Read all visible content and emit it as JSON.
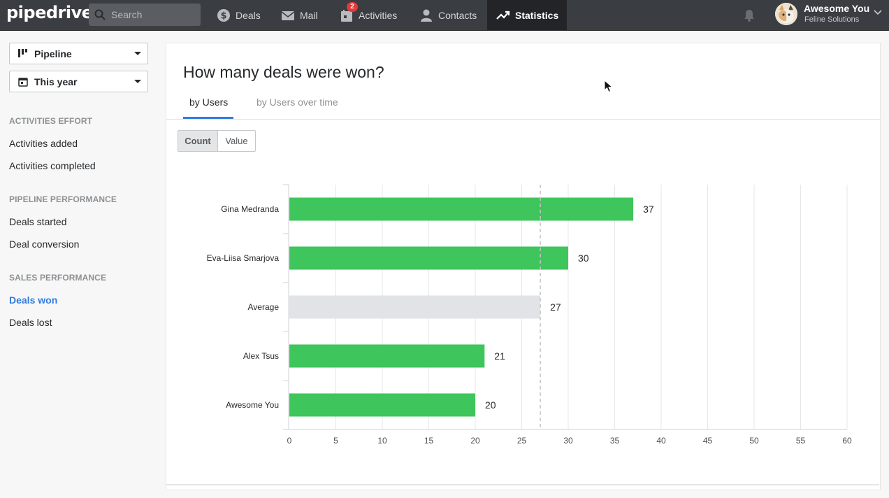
{
  "app": {
    "logo": "pipedrive",
    "search_placeholder": "Search",
    "nav": [
      {
        "label": "Deals",
        "icon": "dollar-icon"
      },
      {
        "label": "Mail",
        "icon": "mail-icon"
      },
      {
        "label": "Activities",
        "icon": "calendar-icon",
        "badge": "2"
      },
      {
        "label": "Contacts",
        "icon": "person-icon"
      },
      {
        "label": "Statistics",
        "icon": "trend-icon"
      }
    ],
    "active_nav": "Statistics",
    "user": {
      "name": "Awesome You",
      "company": "Feline Solutions"
    }
  },
  "sidebar": {
    "pipeline_select": "Pipeline",
    "period_select": "This year",
    "sections": [
      {
        "title": "ACTIVITIES EFFORT",
        "items": [
          "Activities added",
          "Activities completed"
        ]
      },
      {
        "title": "PIPELINE PERFORMANCE",
        "items": [
          "Deals started",
          "Deal conversion"
        ]
      },
      {
        "title": "SALES PERFORMANCE",
        "items": [
          "Deals won",
          "Deals lost"
        ]
      }
    ],
    "active_item": "Deals won"
  },
  "main": {
    "title": "How many deals were won?",
    "tabs": [
      "by Users",
      "by Users over time"
    ],
    "toggle": [
      "Count",
      "Value"
    ]
  },
  "colors": {
    "bar": "#3ec55b",
    "average_bar": "#e1e3e6",
    "accent": "#317ae2",
    "topbar": "#3a3d41"
  },
  "chart_data": {
    "type": "bar",
    "orientation": "horizontal",
    "categories": [
      "Gina Medranda",
      "Eva-Liisa Smarjova",
      "Average",
      "Alex Tsus",
      "Awesome You"
    ],
    "values": [
      37,
      30,
      27,
      21,
      20
    ],
    "average_value": 27,
    "xlim": [
      0,
      60
    ],
    "xticks": [
      0,
      5,
      10,
      15,
      20,
      25,
      30,
      35,
      40,
      45,
      50,
      55,
      60
    ],
    "title": "How many deals were won?",
    "xlabel": "",
    "ylabel": ""
  }
}
